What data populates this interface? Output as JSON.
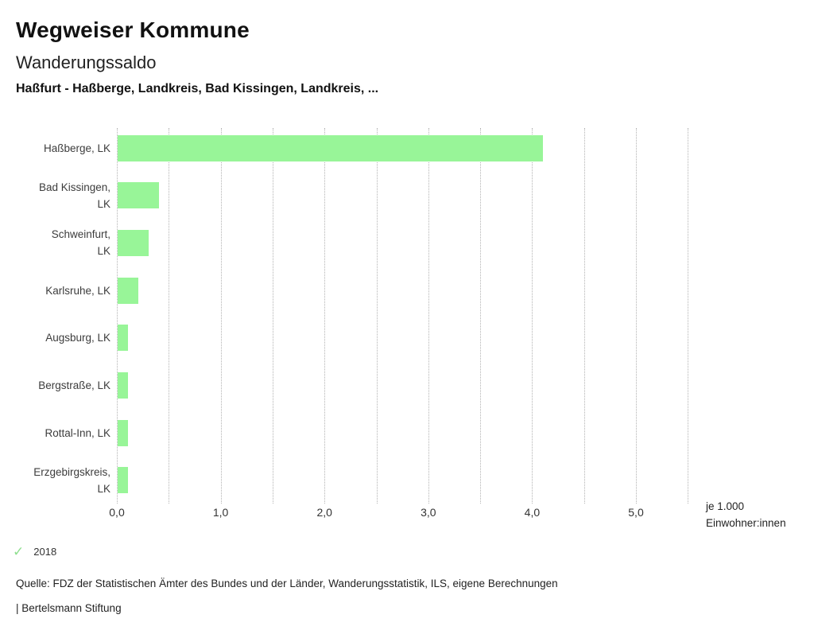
{
  "header": {
    "title": "Wegweiser Kommune",
    "subtitle": "Wanderungssaldo",
    "scope": "Haßfurt - Haßberge, Landkreis, Bad Kissingen, Landkreis, ..."
  },
  "chart_data": {
    "type": "bar",
    "orientation": "horizontal",
    "title": "Wanderungssaldo",
    "categories": [
      "Haßberge, LK",
      "Bad Kissingen, LK",
      "Schweinfurt, LK",
      "Karlsruhe, LK",
      "Augsburg, LK",
      "Bergstraße, LK",
      "Rottal-Inn, LK",
      "Erzgebirgskreis, LK"
    ],
    "category_lines": [
      [
        "Haßberge, LK"
      ],
      [
        "Bad Kissingen,",
        "LK"
      ],
      [
        "Schweinfurt,",
        "LK"
      ],
      [
        "Karlsruhe, LK"
      ],
      [
        "Augsburg, LK"
      ],
      [
        "Bergstraße, LK"
      ],
      [
        "Rottal-Inn, LK"
      ],
      [
        "Erzgebirgskreis,",
        "LK"
      ]
    ],
    "series": [
      {
        "name": "2018",
        "values": [
          4.1,
          0.4,
          0.3,
          0.2,
          0.1,
          0.1,
          0.1,
          0.1
        ]
      }
    ],
    "xlabel": "je 1.000 Einwohner:innen",
    "xlabel_lines": [
      "je 1.000",
      "Einwohner:innen"
    ],
    "xlim": [
      0,
      5.5
    ],
    "xticks": [
      0,
      1,
      2,
      3,
      4,
      5
    ],
    "xtick_labels": [
      "0,0",
      "1,0",
      "2,0",
      "3,0",
      "4,0",
      "5,0"
    ],
    "gridline_step": 0.5,
    "grid": true,
    "legend_position": "bottom-left",
    "bar_color": "#98f598",
    "gridline_color": "#b3b3b3"
  },
  "legend": {
    "check_glyph": "✓",
    "check_color": "#8fdf8f",
    "label": "2018"
  },
  "footer": {
    "source": "Quelle: FDZ der Statistischen Ämter des Bundes und der Länder, Wanderungsstatistik, ILS, eigene Berechnungen",
    "brand": "| Bertelsmann Stiftung"
  }
}
